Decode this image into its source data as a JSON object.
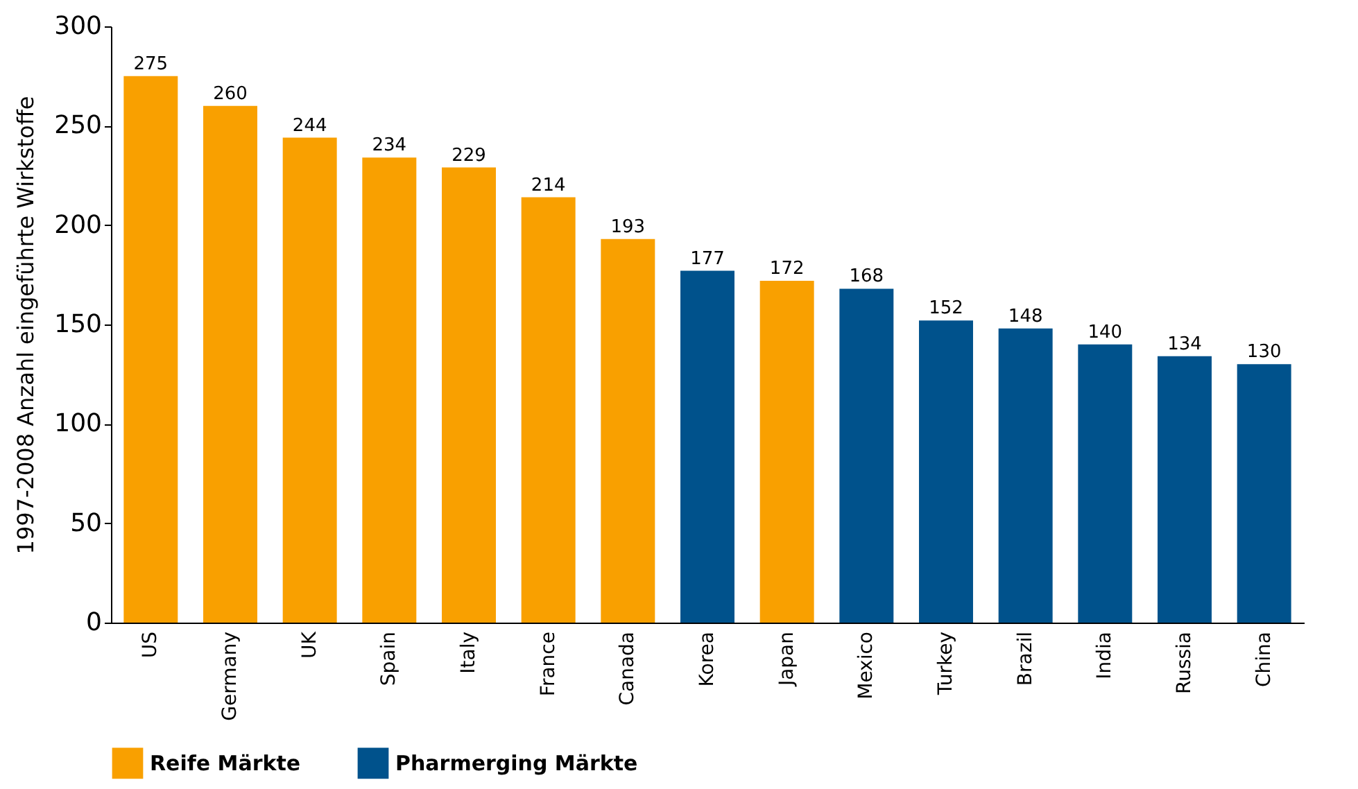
{
  "chart_data": {
    "type": "bar",
    "ylabel": "1997-2008 Anzahl eingeführte Wirkstoffe",
    "categories": [
      "US",
      "Germany",
      "UK",
      "Spain",
      "Italy",
      "France",
      "Canada",
      "Korea",
      "Japan",
      "Mexico",
      "Turkey",
      "Brazil",
      "India",
      "Russia",
      "China"
    ],
    "series": [
      {
        "name": "Reife Märkte",
        "color": "#f9a000",
        "values": [
          275,
          260,
          244,
          234,
          229,
          214,
          193,
          null,
          172,
          null,
          null,
          null,
          null,
          null,
          null
        ]
      },
      {
        "name": "Pharmerging Märkte",
        "color": "#00528c",
        "values": [
          null,
          null,
          null,
          null,
          null,
          null,
          null,
          177,
          null,
          168,
          152,
          148,
          140,
          134,
          130
        ]
      }
    ],
    "data_labels": true,
    "ylim": [
      0,
      300
    ],
    "yticks": [
      0,
      50,
      100,
      150,
      200,
      250,
      300
    ],
    "grid": false,
    "legend": "bottom"
  }
}
